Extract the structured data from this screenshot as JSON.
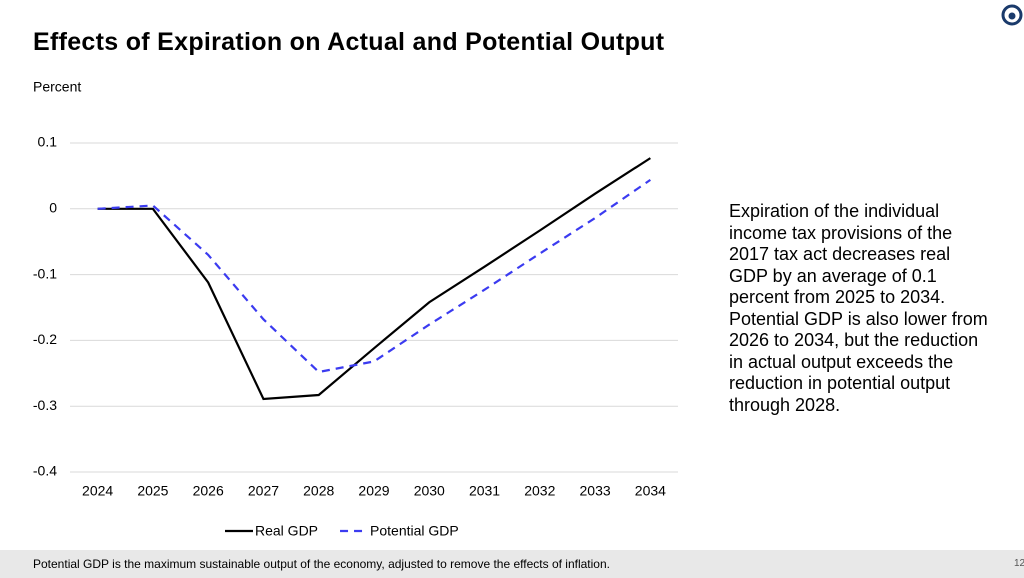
{
  "chart_data": {
    "type": "line",
    "title": "Effects of Expiration on Actual and Potential Output",
    "y_label": "Percent",
    "categories": [
      "2024",
      "2025",
      "2026",
      "2027",
      "2028",
      "2029",
      "2030",
      "2031",
      "2032",
      "2033",
      "2034"
    ],
    "series": [
      {
        "name": "Real GDP",
        "color": "#000000",
        "dash": false,
        "values": [
          0,
          0,
          -0.112,
          -0.289,
          -0.283,
          -0.212,
          -0.142,
          -0.088,
          -0.033,
          0.023,
          0.077
        ]
      },
      {
        "name": "Potential GDP",
        "color": "#3b3bf0",
        "dash": true,
        "values": [
          0,
          0.005,
          -0.07,
          -0.168,
          -0.248,
          -0.232,
          -0.176,
          -0.123,
          -0.068,
          -0.014,
          0.044
        ]
      }
    ],
    "ylim": [
      -0.4,
      0.1
    ],
    "yticks": [
      0.1,
      0,
      -0.1,
      -0.2,
      -0.3,
      -0.4
    ],
    "grid": true,
    "legend": "bottom"
  },
  "side_text": "Expiration of the individual income tax provisions of the 2017 tax act decreases real GDP by an average of 0.1 percent from 2025 to 2034. Potential GDP is also lower from 2026 to 2034, but the reduction in actual output exceeds the reduction in potential output through 2028.",
  "footnote": "Potential GDP is the maximum sustainable output of the economy, adjusted to remove the effects of inflation.",
  "page_number": "12"
}
